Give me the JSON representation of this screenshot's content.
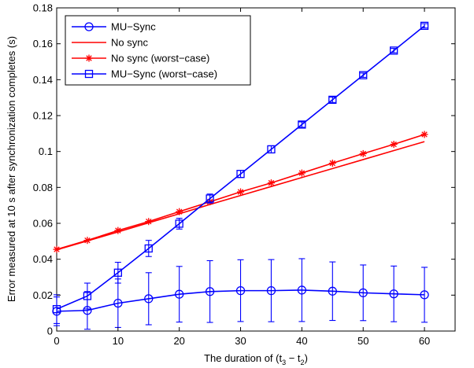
{
  "chart_data": {
    "type": "line",
    "title": "",
    "xlabel": "The duration of (t",
    "xlabel_sub1": "3",
    "xlabel_mid": " − t",
    "xlabel_sub2": "2",
    "xlabel_end": ")",
    "ylabel": "Error measured at 10 s after synchronization completes (s)",
    "xlim": [
      0,
      65
    ],
    "ylim": [
      0,
      0.18
    ],
    "x_ticks": [
      0,
      10,
      20,
      30,
      40,
      50,
      60
    ],
    "y_ticks": [
      0,
      0.02,
      0.04,
      0.06,
      0.08,
      0.1,
      0.12,
      0.14,
      0.16,
      0.18
    ],
    "y_tick_labels": [
      "0",
      "0.02",
      "0.04",
      "0.06",
      "0.08",
      "0.1",
      "0.12",
      "0.14",
      "0.16",
      "0.18"
    ],
    "grid": false,
    "legend_position": "top-left",
    "x": [
      0,
      5,
      10,
      15,
      20,
      25,
      30,
      35,
      40,
      45,
      50,
      55,
      60
    ],
    "series": [
      {
        "name": "MU−Sync",
        "color": "#0000ff",
        "marker": "circle",
        "values": [
          0.011,
          0.0115,
          0.0155,
          0.018,
          0.0205,
          0.022,
          0.0225,
          0.0225,
          0.0228,
          0.0222,
          0.0213,
          0.0207,
          0.0202
        ],
        "err": [
          0.008,
          0.0105,
          0.0135,
          0.0145,
          0.0155,
          0.0172,
          0.0172,
          0.0173,
          0.0175,
          0.0163,
          0.0155,
          0.0155,
          0.0153
        ]
      },
      {
        "name": "No sync",
        "color": "#ff0000",
        "marker": "none",
        "values": [
          0.0452,
          0.0502,
          0.0552,
          0.0603,
          0.0653,
          0.0705,
          0.0755,
          0.0805,
          0.0855,
          0.0905,
          0.0955,
          0.1005,
          0.1055
        ]
      },
      {
        "name": "No sync (worst−case)",
        "color": "#ff0000",
        "marker": "star",
        "values": [
          0.0455,
          0.0505,
          0.056,
          0.061,
          0.0665,
          0.072,
          0.0775,
          0.0825,
          0.088,
          0.0935,
          0.0988,
          0.104,
          0.1095
        ]
      },
      {
        "name": "MU−Sync (worst−case)",
        "color": "#0000ff",
        "marker": "square",
        "values": [
          0.0122,
          0.0195,
          0.0325,
          0.046,
          0.0598,
          0.0738,
          0.0875,
          0.1012,
          0.115,
          0.1288,
          0.1425,
          0.1562,
          0.17
        ],
        "err": [
          0.008,
          0.0072,
          0.0058,
          0.0045,
          0.003,
          0.0025,
          0.002,
          0.002,
          0.0015,
          0.0015,
          0.0012,
          0.0012,
          0.0012
        ]
      }
    ]
  }
}
